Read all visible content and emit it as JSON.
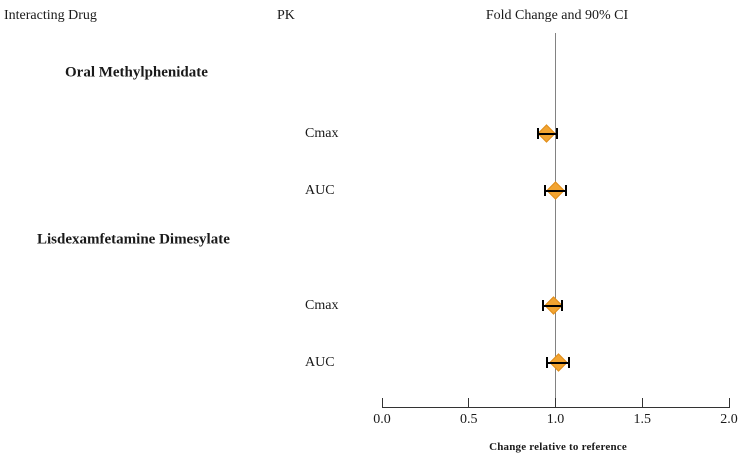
{
  "header": {
    "interacting_drug": "Interacting Drug",
    "pk": "PK",
    "fold_change": "Fold Change and 90% CI"
  },
  "axis": {
    "title": "Change relative to reference",
    "tick_labels": [
      "0.0",
      "0.5",
      "1.0",
      "1.5",
      "2.0"
    ]
  },
  "colors": {
    "marker_fill": "#F2A431",
    "marker_edge": "#E08E1B",
    "error_bar": "#000000",
    "reference_line": "#828282",
    "axis_line": "#333333",
    "text": "#1a1a1a"
  },
  "chart_data": {
    "type": "forest",
    "title": "Fold Change and 90% CI",
    "xlabel": "Change relative to reference",
    "xlim": [
      0.0,
      2.0
    ],
    "x_ticks": [
      0.0,
      0.5,
      1.0,
      1.5,
      2.0
    ],
    "reference_line_x": 1.0,
    "ci_level": "90%",
    "legend": "none",
    "grid": false,
    "groups": [
      {
        "label": "Oral Methylphenidate",
        "rows": [
          {
            "pk": "Cmax",
            "estimate": 0.95,
            "ci_lower": 0.9,
            "ci_upper": 1.01
          },
          {
            "pk": "AUC",
            "estimate": 1.0,
            "ci_lower": 0.94,
            "ci_upper": 1.06
          }
        ]
      },
      {
        "label": "Lisdexamfetamine Dimesylate",
        "rows": [
          {
            "pk": "Cmax",
            "estimate": 0.99,
            "ci_lower": 0.93,
            "ci_upper": 1.04
          },
          {
            "pk": "AUC",
            "estimate": 1.02,
            "ci_lower": 0.95,
            "ci_upper": 1.08
          }
        ]
      }
    ]
  }
}
